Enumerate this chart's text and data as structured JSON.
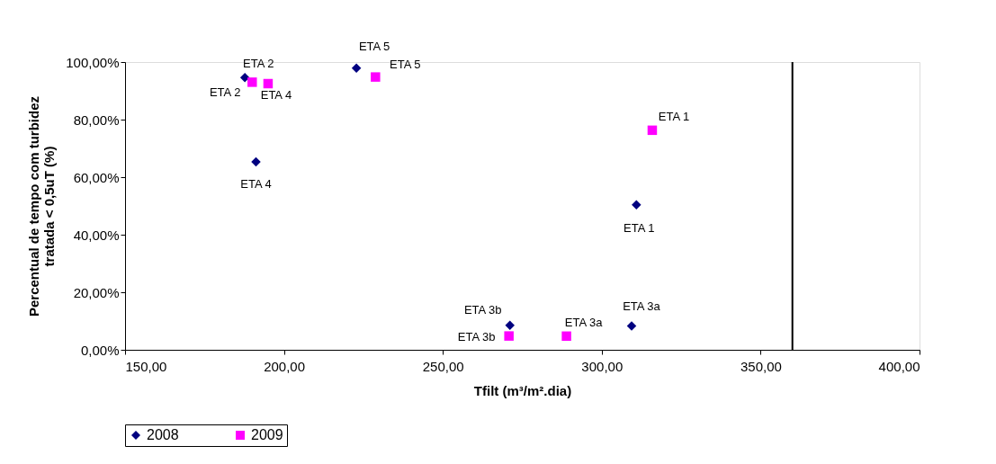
{
  "chart_data": {
    "type": "scatter",
    "xlabel": "Tfilt (m³/m².dia)",
    "ylabel": "Percentual de tempo com turbidez\ntratada < 0,5uT (%)",
    "series": [
      {
        "name": "2008",
        "color": "#000080",
        "marker": "diamond",
        "x": [
          187.7,
          191.2,
          222.8,
          271.1,
          309.4,
          310.9
        ],
        "values": [
          94.6,
          65.3,
          97.9,
          8.5,
          8.3,
          50.4
        ]
      },
      {
        "name": "2009",
        "color": "#ff00ff",
        "marker": "square",
        "x": [
          190.0,
          195.0,
          228.8,
          270.8,
          288.9,
          315.9
        ],
        "values": [
          93.0,
          92.5,
          94.8,
          4.8,
          4.75,
          76.3
        ]
      }
    ],
    "annotations": [
      {
        "text": "ETA 2",
        "x": 187.7,
        "y": 94.6
      },
      {
        "text": "ETA 4",
        "x": 191.2,
        "y": 65.3
      },
      {
        "text": "ETA 5",
        "x": 222.8,
        "y": 97.9
      },
      {
        "text": "ETA 3b",
        "x": 271.1,
        "y": 8.5
      },
      {
        "text": "ETA 3a",
        "x": 309.4,
        "y": 8.3
      },
      {
        "text": "ETA 1",
        "x": 310.9,
        "y": 50.4
      },
      {
        "text": "ETA 2",
        "x": 190.0,
        "y": 93.0
      },
      {
        "text": "ETA 4",
        "x": 195.0,
        "y": 92.5
      },
      {
        "text": "ETA 5",
        "x": 228.8,
        "y": 94.8
      },
      {
        "text": "ETA 3b",
        "x": 270.8,
        "y": 4.8
      },
      {
        "text": "ETA 3a",
        "x": 288.9,
        "y": 4.75
      },
      {
        "text": "ETA 1",
        "x": 315.9,
        "y": 76.3
      }
    ],
    "ref_lines": [
      {
        "axis": "x",
        "value": 360,
        "color": "#000000"
      }
    ],
    "xlim": [
      150,
      400
    ],
    "xticks": [
      {
        "value": 150,
        "label": "150,00"
      },
      {
        "value": 200,
        "label": "200,00"
      },
      {
        "value": 250,
        "label": "250,00"
      },
      {
        "value": 300,
        "label": "300,00"
      },
      {
        "value": 350,
        "label": "350,00"
      },
      {
        "value": 400,
        "label": "400,00"
      }
    ],
    "ylim": [
      0,
      100
    ],
    "yticks": [
      {
        "value": 0,
        "label": "0,00%"
      },
      {
        "value": 20,
        "label": "20,00%"
      },
      {
        "value": 40,
        "label": "40,00%"
      },
      {
        "value": 60,
        "label": "60,00%"
      },
      {
        "value": 80,
        "label": "80,00%"
      },
      {
        "value": 100,
        "label": "100,00%"
      }
    ],
    "grid": false,
    "legend": "bottom"
  }
}
